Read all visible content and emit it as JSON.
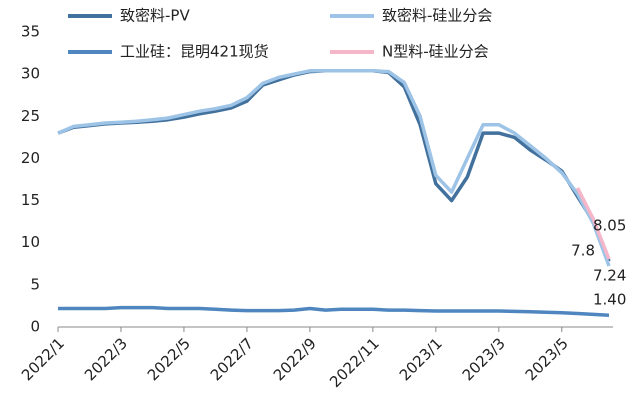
{
  "chart_data": {
    "type": "line",
    "categories": [
      "2022/1",
      null,
      null,
      null,
      "2022/3",
      null,
      null,
      null,
      "2022/5",
      null,
      null,
      null,
      "2022/7",
      null,
      null,
      null,
      "2022/9",
      null,
      null,
      null,
      "2022/11",
      null,
      null,
      null,
      "2023/1",
      null,
      null,
      null,
      "2023/3",
      null,
      null,
      null,
      "2023/5",
      null,
      null,
      null
    ],
    "series": [
      {
        "name": "致密料-PV",
        "color": "#41719c",
        "values": [
          23,
          23.7,
          23.9,
          24.1,
          24.2,
          24.3,
          24.4,
          24.6,
          24.9,
          25.3,
          25.6,
          26,
          26.8,
          28.7,
          29.3,
          29.9,
          30.3,
          30.4,
          30.4,
          30.4,
          30.4,
          30.2,
          28.5,
          24,
          17,
          15,
          17.8,
          23,
          23,
          22.5,
          21,
          19.8,
          18.5,
          15.5,
          12.5,
          7.8
        ]
      },
      {
        "name": "致密料-硅业分会",
        "color": "#9dc3e6",
        "values": [
          23,
          23.8,
          24,
          24.2,
          24.3,
          24.4,
          24.6,
          24.8,
          25.2,
          25.6,
          25.9,
          26.3,
          27.2,
          28.9,
          29.6,
          30,
          30.4,
          30.4,
          30.4,
          30.4,
          30.4,
          30.3,
          29,
          25,
          18,
          16,
          20,
          24,
          24,
          23,
          21.5,
          20,
          18.3,
          15.8,
          12.3,
          7.24
        ]
      },
      {
        "name": "工业硅：昆明421现货",
        "color": "#4f86c0",
        "values": [
          2.2,
          2.2,
          2.2,
          2.2,
          2.3,
          2.3,
          2.3,
          2.2,
          2.2,
          2.2,
          2.1,
          2.0,
          1.95,
          1.95,
          1.95,
          2.0,
          2.2,
          2.0,
          2.1,
          2.1,
          2.1,
          2.0,
          2.0,
          1.95,
          1.9,
          1.9,
          1.9,
          1.9,
          1.9,
          1.85,
          1.8,
          1.75,
          1.7,
          1.6,
          1.5,
          1.4
        ]
      },
      {
        "name": "N型料-硅业分会",
        "color": "#f4b6c8",
        "values": [
          null,
          null,
          null,
          null,
          null,
          null,
          null,
          null,
          null,
          null,
          null,
          null,
          null,
          null,
          null,
          null,
          null,
          null,
          null,
          null,
          null,
          null,
          null,
          null,
          null,
          null,
          null,
          null,
          null,
          null,
          null,
          null,
          null,
          16.5,
          12.8,
          8.05
        ]
      }
    ],
    "annotations": [
      "8.05",
      "7.8",
      "7.24",
      "1.40"
    ],
    "ylim": [
      0,
      35
    ],
    "yticks": [
      0,
      5,
      10,
      15,
      20,
      25,
      30,
      35
    ],
    "grid": false
  }
}
